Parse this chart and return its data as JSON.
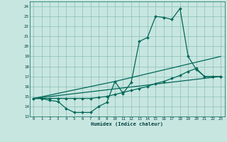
{
  "xlabel": "Humidex (Indice chaleur)",
  "bg_color": "#c8e6e0",
  "grid_color": "#8abfb8",
  "line_color": "#006858",
  "xlim": [
    -0.5,
    23.5
  ],
  "ylim": [
    13,
    24.5
  ],
  "xticks": [
    0,
    1,
    2,
    3,
    4,
    5,
    6,
    7,
    8,
    9,
    10,
    11,
    12,
    13,
    14,
    15,
    16,
    17,
    18,
    19,
    20,
    21,
    22,
    23
  ],
  "yticks": [
    13,
    14,
    15,
    16,
    17,
    18,
    19,
    20,
    21,
    22,
    23,
    24
  ],
  "line1_x": [
    0,
    1,
    2,
    3,
    4,
    5,
    6,
    7,
    8,
    9,
    10,
    11,
    12,
    13,
    14,
    15,
    16,
    17,
    18,
    19,
    20,
    21,
    22,
    23
  ],
  "line1_y": [
    14.8,
    14.8,
    14.6,
    14.5,
    13.8,
    13.4,
    13.4,
    13.4,
    14.0,
    14.4,
    16.5,
    15.3,
    16.4,
    20.5,
    20.9,
    23.0,
    22.9,
    22.7,
    23.8,
    19.0,
    17.7,
    17.0,
    17.0,
    17.0
  ],
  "line2_x": [
    0,
    1,
    2,
    3,
    4,
    5,
    6,
    7,
    8,
    9,
    10,
    11,
    12,
    13,
    14,
    15,
    16,
    17,
    18,
    19,
    20,
    21,
    22,
    23
  ],
  "line2_y": [
    14.8,
    14.8,
    14.8,
    14.8,
    14.8,
    14.8,
    14.8,
    14.8,
    14.9,
    15.0,
    15.2,
    15.4,
    15.6,
    15.8,
    16.0,
    16.3,
    16.5,
    16.8,
    17.1,
    17.5,
    17.8,
    17.0,
    17.0,
    17.0
  ],
  "line3_x": [
    0,
    23
  ],
  "line3_y": [
    14.8,
    17.0
  ],
  "line4_x": [
    0,
    10,
    23
  ],
  "line4_y": [
    14.8,
    16.5,
    19.0
  ]
}
